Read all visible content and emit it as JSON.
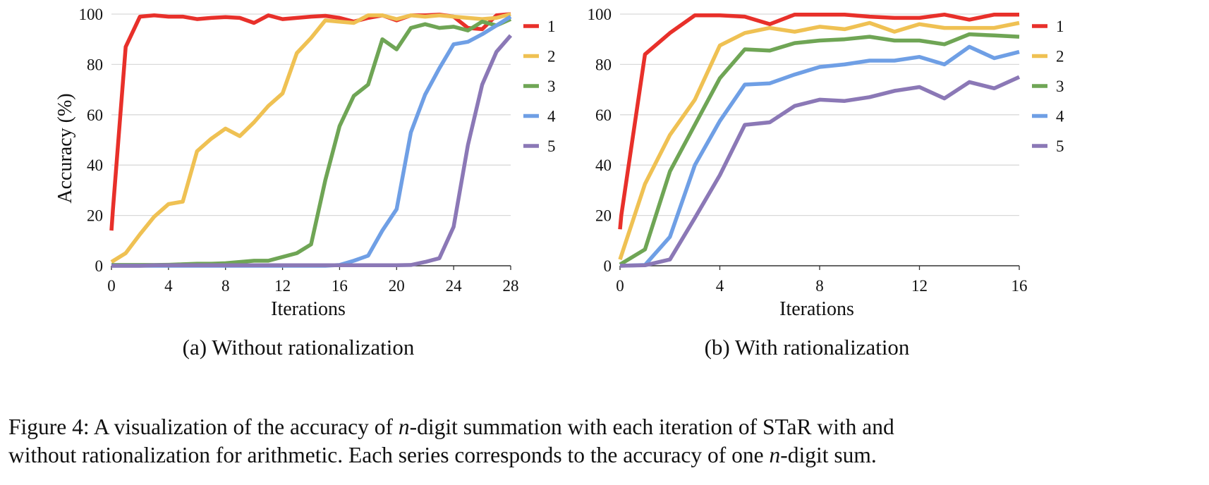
{
  "chart_data": [
    {
      "type": "line",
      "subtitle": "(a) Without rationalization",
      "xlabel": "Iterations",
      "ylabel": "Accuracy (%)",
      "xlim": [
        0,
        28
      ],
      "ylim": [
        0,
        100
      ],
      "xticks": [
        0,
        4,
        8,
        12,
        16,
        20,
        24,
        28
      ],
      "yticks": [
        0,
        20,
        40,
        60,
        80,
        100
      ],
      "grid": "horizontal",
      "legend_position": "right",
      "series": [
        {
          "name": "1",
          "color": "#e8302a",
          "x": [
            0,
            0.1,
            1,
            2,
            3,
            4,
            5,
            6,
            7,
            8,
            9,
            10,
            11,
            12,
            13,
            14,
            15,
            16,
            17,
            18,
            19,
            20,
            21,
            22,
            23,
            24,
            25,
            26,
            27,
            28
          ],
          "y": [
            14,
            22,
            87,
            99,
            99.5,
            99,
            99,
            98,
            98.5,
            98.8,
            98.5,
            96.5,
            99.5,
            98,
            98.5,
            99,
            99.3,
            98.5,
            97,
            98.5,
            99.5,
            97.5,
            99.5,
            99.5,
            99.8,
            99,
            94.5,
            94,
            99.5,
            100
          ]
        },
        {
          "name": "2",
          "color": "#efc153",
          "x": [
            0,
            1,
            2,
            3,
            4,
            5,
            6,
            7,
            8,
            9,
            10,
            11,
            12,
            13,
            14,
            15,
            16,
            17,
            18,
            19,
            20,
            21,
            22,
            23,
            24,
            25,
            26,
            27,
            28
          ],
          "y": [
            1.5,
            5,
            12.5,
            19.5,
            24.5,
            25.5,
            45.5,
            50.5,
            54.5,
            51.5,
            57,
            63.5,
            68.5,
            84.5,
            90.5,
            97.5,
            97,
            96.5,
            99.5,
            99.5,
            98,
            99.5,
            99,
            99.5,
            99,
            98.5,
            98,
            98.5,
            100
          ]
        },
        {
          "name": "3",
          "color": "#6fa555",
          "x": [
            0,
            1,
            2,
            3,
            4,
            5,
            6,
            7,
            8,
            9,
            10,
            11,
            12,
            13,
            14,
            15,
            16,
            17,
            18,
            19,
            20,
            21,
            22,
            23,
            24,
            25,
            26,
            27,
            28
          ],
          "y": [
            0.3,
            0.3,
            0.3,
            0.3,
            0.4,
            0.6,
            0.8,
            0.8,
            1,
            1.5,
            2,
            2,
            3.5,
            5,
            8.5,
            34,
            55.5,
            67.5,
            72,
            90,
            86,
            94.5,
            96,
            94.5,
            95,
            93.5,
            97,
            95.5,
            98
          ]
        },
        {
          "name": "4",
          "color": "#6f9fe5",
          "x": [
            0,
            1,
            2,
            3,
            4,
            5,
            6,
            7,
            8,
            9,
            10,
            11,
            12,
            13,
            14,
            15,
            16,
            17,
            18,
            19,
            20,
            21,
            22,
            23,
            24,
            25,
            26,
            27,
            28
          ],
          "y": [
            0,
            0,
            0,
            0,
            0,
            0,
            0,
            0,
            0,
            0,
            0,
            0,
            0,
            0,
            0,
            0,
            0.3,
            2,
            4,
            14,
            22.5,
            53,
            68,
            78.5,
            88,
            89,
            92,
            95.5,
            99
          ]
        },
        {
          "name": "5",
          "color": "#8b78b6",
          "x": [
            0,
            1,
            2,
            3,
            4,
            5,
            6,
            7,
            8,
            9,
            10,
            11,
            12,
            13,
            14,
            15,
            16,
            17,
            18,
            19,
            20,
            21,
            22,
            23,
            24,
            25,
            26,
            27,
            28
          ],
          "y": [
            0,
            0,
            0,
            0.2,
            0.2,
            0.2,
            0.2,
            0.2,
            0.2,
            0.2,
            0.2,
            0.2,
            0.2,
            0.2,
            0.2,
            0.2,
            0.2,
            0.2,
            0.2,
            0.2,
            0.2,
            0.3,
            1.5,
            3,
            15.5,
            48,
            72,
            85,
            91.5
          ]
        }
      ]
    },
    {
      "type": "line",
      "subtitle": "(b) With rationalization",
      "xlabel": "Iterations",
      "ylabel": "",
      "xlim": [
        0,
        16
      ],
      "ylim": [
        0,
        100
      ],
      "xticks": [
        0,
        4,
        8,
        12,
        16
      ],
      "yticks": [
        0,
        20,
        40,
        60,
        80,
        100
      ],
      "grid": "horizontal",
      "legend_position": "right",
      "series": [
        {
          "name": "1",
          "color": "#e8302a",
          "x": [
            0,
            0.05,
            1,
            2,
            3,
            4,
            5,
            6,
            7,
            8,
            9,
            10,
            11,
            12,
            13,
            14,
            15,
            16
          ],
          "y": [
            14.5,
            20,
            84,
            92.5,
            99.5,
            99.5,
            99,
            96,
            99.8,
            99.8,
            99.8,
            99,
            98.5,
            98.5,
            99.8,
            97.8,
            99.8,
            99.8
          ]
        },
        {
          "name": "2",
          "color": "#efc153",
          "x": [
            0,
            1,
            2,
            3,
            4,
            5,
            6,
            7,
            8,
            9,
            10,
            11,
            12,
            13,
            14,
            15,
            16
          ],
          "y": [
            2.5,
            32.5,
            52,
            66,
            87.5,
            92.5,
            94.5,
            93,
            95,
            94,
            96.5,
            93,
            96,
            94.5,
            94.5,
            94.5,
            96.5
          ]
        },
        {
          "name": "3",
          "color": "#6fa555",
          "x": [
            0,
            1,
            2,
            3,
            4,
            5,
            6,
            7,
            8,
            9,
            10,
            11,
            12,
            13,
            14,
            15,
            16
          ],
          "y": [
            0.5,
            6.5,
            37.5,
            56,
            74.5,
            86,
            85.5,
            88.5,
            89.5,
            90,
            91,
            89.5,
            89.5,
            88,
            92,
            91.5,
            91
          ]
        },
        {
          "name": "4",
          "color": "#6f9fe5",
          "x": [
            0,
            1,
            2,
            3,
            4,
            5,
            6,
            7,
            8,
            9,
            10,
            11,
            12,
            13,
            14,
            15,
            16
          ],
          "y": [
            0,
            0.3,
            11.5,
            40,
            57.5,
            72,
            72.5,
            76,
            79,
            80,
            81.5,
            81.5,
            83,
            80,
            87,
            82.5,
            85
          ]
        },
        {
          "name": "5",
          "color": "#8b78b6",
          "x": [
            0,
            1,
            2,
            3,
            4,
            5,
            6,
            7,
            8,
            9,
            10,
            11,
            12,
            13,
            14,
            15,
            16
          ],
          "y": [
            0,
            0.2,
            2.5,
            19,
            36,
            56,
            57,
            63.5,
            66,
            65.5,
            67,
            69.5,
            71,
            66.5,
            73,
            70.5,
            75
          ]
        }
      ]
    }
  ],
  "caption": {
    "line1_before": "Figure 4: A visualization of the accuracy of ",
    "line1_math": "n",
    "line1_after": "-digit summation with each iteration of STaR with and",
    "line2_before": "without rationalization for arithmetic. Each series corresponds to the accuracy of one ",
    "line2_math": "n",
    "line2_after": "-digit sum."
  }
}
